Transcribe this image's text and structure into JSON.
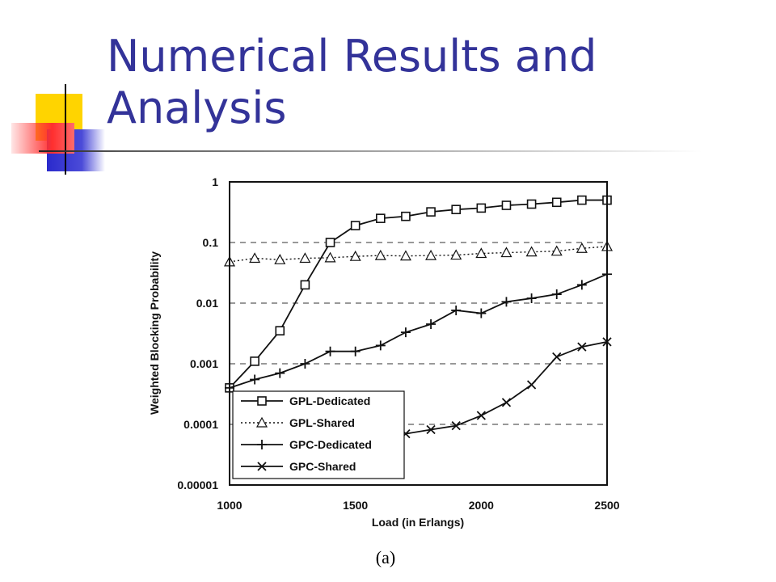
{
  "slide": {
    "title": "Numerical Results and Analysis"
  },
  "chart_data": {
    "type": "line",
    "caption": "(a)",
    "xlabel": "Load (in Erlangs)",
    "ylabel": "Weighted Blocking Probability",
    "xlim": [
      1000,
      2500
    ],
    "ylim": [
      1e-05,
      1
    ],
    "yscale": "log",
    "x_ticks": [
      1000,
      1500,
      2000,
      2500
    ],
    "x_tick_labels": [
      "1000",
      "1500",
      "2000",
      "2500"
    ],
    "y_ticks": [
      1,
      0.1,
      0.01,
      0.001,
      0.0001,
      1e-05
    ],
    "y_tick_labels": [
      "1",
      "0.1",
      "0.01",
      "0.001",
      "0.0001",
      "0.00001"
    ],
    "grid": "horizontal dashed",
    "legend_position": "bottom-left",
    "x": [
      1000,
      1100,
      1200,
      1300,
      1400,
      1500,
      1600,
      1700,
      1800,
      1900,
      2000,
      2100,
      2200,
      2300,
      2400,
      2500
    ],
    "series": [
      {
        "name": "GPL-Dedicated",
        "marker": "square",
        "line": "solid",
        "values": [
          0.0004,
          0.0011,
          0.0035,
          0.02,
          0.1,
          0.19,
          0.25,
          0.27,
          0.32,
          0.35,
          0.37,
          0.41,
          0.43,
          0.46,
          0.5,
          0.5
        ]
      },
      {
        "name": "GPL-Shared",
        "marker": "triangle",
        "line": "dotted",
        "values": [
          0.048,
          0.055,
          0.052,
          0.055,
          0.056,
          0.059,
          0.061,
          0.06,
          0.061,
          0.062,
          0.066,
          0.068,
          0.07,
          0.072,
          0.08,
          0.086
        ]
      },
      {
        "name": "GPC-Dedicated",
        "marker": "plus",
        "line": "solid",
        "values": [
          0.0004,
          0.00055,
          0.0007,
          0.001,
          0.0016,
          0.0016,
          0.002,
          0.0033,
          0.0045,
          0.0076,
          0.0068,
          0.0105,
          0.012,
          0.014,
          0.02,
          0.03
        ]
      },
      {
        "name": "GPC-Shared",
        "marker": "x",
        "line": "solid",
        "x": [
          1700,
          1800,
          1900,
          2000,
          2100,
          2200,
          2300,
          2400,
          2500
        ],
        "values": [
          7e-05,
          8.2e-05,
          9.5e-05,
          0.00014,
          0.00023,
          0.00045,
          0.0013,
          0.0019,
          0.0023
        ]
      }
    ]
  }
}
